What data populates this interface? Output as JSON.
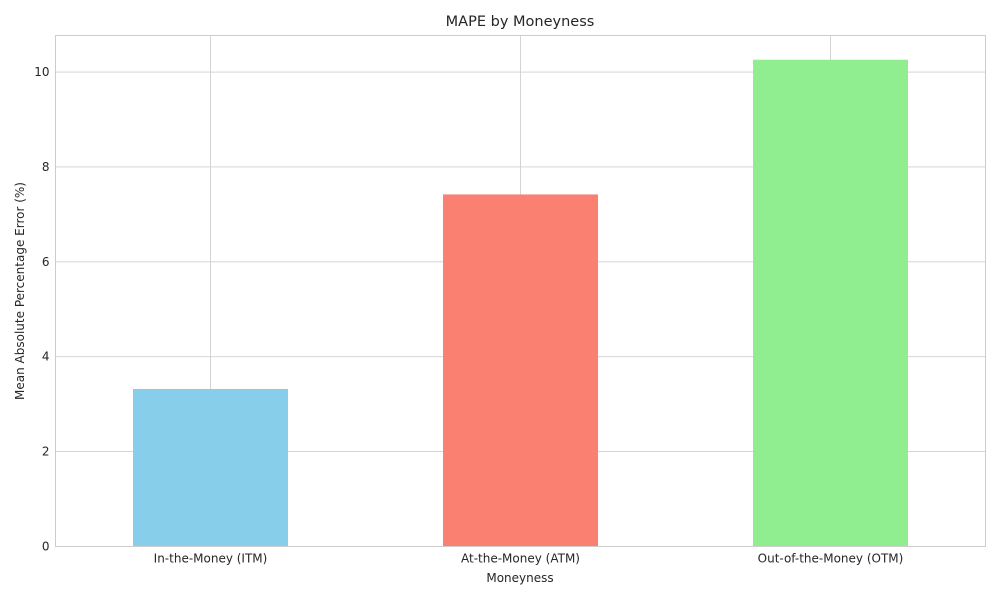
{
  "chart_data": {
    "type": "bar",
    "title": "MAPE by Moneyness",
    "xlabel": "Moneyness",
    "ylabel": "Mean Absolute Percentage Error (%)",
    "categories": [
      "In-the-Money (ITM)",
      "At-the-Money (ATM)",
      "Out-of-the-Money (OTM)"
    ],
    "values": [
      3.32,
      7.42,
      10.26
    ],
    "colors": [
      "#87ceeb",
      "#fa8072",
      "#90ee90"
    ],
    "ylim": [
      0,
      10.77
    ],
    "yticks": [
      "0",
      "2",
      "4",
      "6",
      "8",
      "10"
    ],
    "grid": true,
    "legend": "none"
  }
}
